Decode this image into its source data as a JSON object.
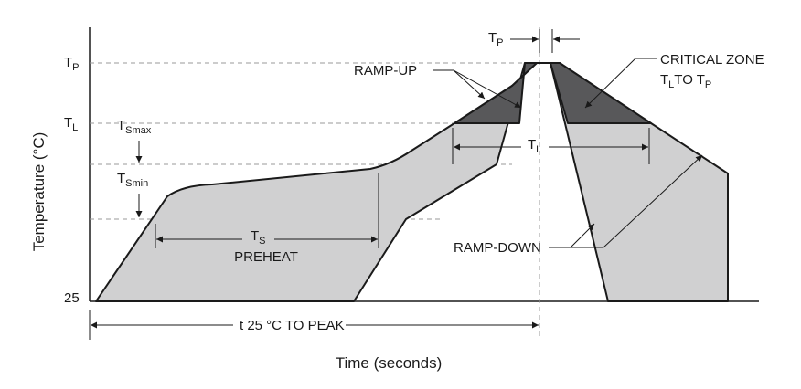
{
  "axes": {
    "x_title": "Time (seconds)",
    "y_title": "Temperature (°C)"
  },
  "y_ticks": {
    "tp": {
      "main": "T",
      "sub": "P"
    },
    "tl": {
      "main": "T",
      "sub": "L"
    },
    "t25": "25"
  },
  "labels": {
    "ts_max": {
      "main": "T",
      "sub": "Smax"
    },
    "ts_min": {
      "main": "T",
      "sub": "Smin"
    },
    "ts": {
      "main": "T",
      "sub": "S"
    },
    "preheat": "PREHEAT",
    "ramp_up": "RAMP-UP",
    "ramp_down": "RAMP-DOWN",
    "tp_width": {
      "main": "T",
      "sub": "P"
    },
    "tl_width": {
      "main": "T",
      "sub": "L"
    },
    "critical_zone_line1": "CRITICAL ZONE",
    "critical_zone_line2": {
      "a": "T",
      "a_sub": "L",
      "mid": "TO T",
      "b_sub": "P"
    },
    "peak_time": "t  25 °C TO PEAK"
  },
  "colors": {
    "light_region": "#d0d0d1",
    "critical_zone": "#58585a",
    "outline": "#1a1a1a",
    "dashed": "#9a9a9a"
  }
}
